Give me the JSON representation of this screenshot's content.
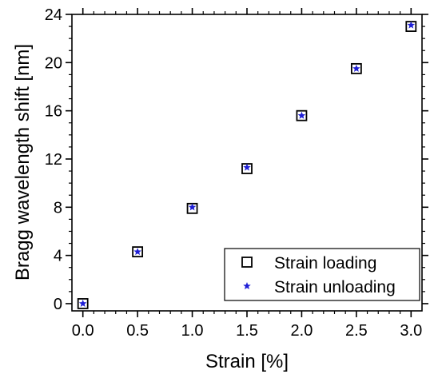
{
  "chart_data": {
    "type": "scatter",
    "xlabel": "Strain [%]",
    "ylabel": "Bragg wavelength shift [nm]",
    "xlim": [
      -0.1,
      3.1
    ],
    "ylim": [
      -0.6,
      24
    ],
    "x_ticks": [
      0.0,
      0.5,
      1.0,
      1.5,
      2.0,
      2.5,
      3.0
    ],
    "x_tick_labels": [
      "0.0",
      "0.5",
      "1.0",
      "1.5",
      "2.0",
      "2.5",
      "3.0"
    ],
    "y_ticks": [
      0,
      4,
      8,
      12,
      16,
      20,
      24
    ],
    "y_tick_labels": [
      "0",
      "4",
      "8",
      "12",
      "16",
      "20",
      "24"
    ],
    "grid": false,
    "legend_position": "bottom-right",
    "series": [
      {
        "name": "Strain loading",
        "marker": "open-square",
        "color": "#000000",
        "x": [
          0.0,
          0.5,
          1.0,
          1.5,
          2.0,
          2.5,
          3.0
        ],
        "y": [
          0.0,
          4.3,
          7.9,
          11.2,
          15.6,
          19.5,
          23.0
        ]
      },
      {
        "name": "Strain unloading",
        "marker": "star",
        "color": "#1f1fd6",
        "x": [
          0.0,
          0.5,
          1.0,
          1.5,
          2.0,
          2.5,
          3.0
        ],
        "y": [
          0.0,
          4.3,
          8.0,
          11.3,
          15.6,
          19.5,
          23.1
        ]
      }
    ]
  }
}
